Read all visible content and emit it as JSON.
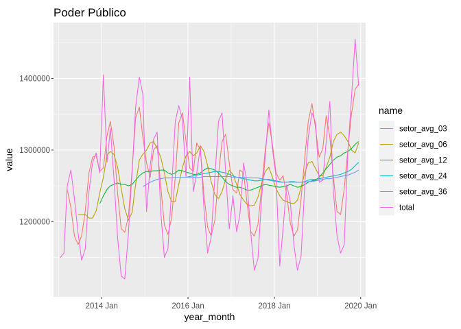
{
  "chart_data": {
    "type": "line",
    "title": "Poder Público",
    "xlabel": "year_month",
    "ylabel": "value",
    "xlim": [
      "2012-11-19",
      "2020-02-12"
    ],
    "ylim": [
      1095000,
      1478000
    ],
    "x_ticks": [
      {
        "date": "2014-01-01",
        "label": "2014 Jan"
      },
      {
        "date": "2016-01-01",
        "label": "2016 Jan"
      },
      {
        "date": "2018-01-01",
        "label": "2018 Jan"
      },
      {
        "date": "2020-01-01",
        "label": "2020 Jan"
      }
    ],
    "y_ticks": [
      {
        "value": 1200000,
        "label": "1200000"
      },
      {
        "value": 1300000,
        "label": "1300000"
      },
      {
        "value": 1400000,
        "label": "1400000"
      }
    ],
    "grid": true,
    "legend": {
      "title": "name",
      "placement": "right"
    },
    "series": [
      {
        "name": "setor_avg_03",
        "color": "#F8766D",
        "x": [
          "2013-03",
          "2013-04",
          "2013-05",
          "2013-06",
          "2013-07",
          "2013-08",
          "2013-09",
          "2013-10",
          "2013-11",
          "2013-12",
          "2014-01",
          "2014-02",
          "2014-03",
          "2014-04",
          "2014-05",
          "2014-06",
          "2014-07",
          "2014-08",
          "2014-09",
          "2014-10",
          "2014-11",
          "2014-12",
          "2015-01",
          "2015-02",
          "2015-03",
          "2015-04",
          "2015-05",
          "2015-06",
          "2015-07",
          "2015-08",
          "2015-09",
          "2015-10",
          "2015-11",
          "2015-12",
          "2016-01",
          "2016-02",
          "2016-03",
          "2016-04",
          "2016-05",
          "2016-06",
          "2016-07",
          "2016-08",
          "2016-09",
          "2016-10",
          "2016-11",
          "2016-12",
          "2017-01",
          "2017-02",
          "2017-03",
          "2017-04",
          "2017-05",
          "2017-06",
          "2017-07",
          "2017-08",
          "2017-09",
          "2017-10",
          "2017-11",
          "2017-12",
          "2018-01",
          "2018-02",
          "2018-03",
          "2018-04",
          "2018-05",
          "2018-06",
          "2018-07",
          "2018-08",
          "2018-09",
          "2018-10",
          "2018-11",
          "2018-12",
          "2019-01",
          "2019-02",
          "2019-03",
          "2019-04",
          "2019-05",
          "2019-06",
          "2019-07",
          "2019-08",
          "2019-09",
          "2019-10",
          "2019-11",
          "2019-12"
        ],
        "y": [
          1245000,
          1220000,
          1180000,
          1168000,
          1180000,
          1215000,
          1268000,
          1290000,
          1292000,
          1270000,
          1275000,
          1320000,
          1340000,
          1305000,
          1240000,
          1190000,
          1185000,
          1208000,
          1272000,
          1345000,
          1360000,
          1318000,
          1282000,
          1262000,
          1300000,
          1306000,
          1250000,
          1195000,
          1182000,
          1205000,
          1262000,
          1338000,
          1352000,
          1312000,
          1275000,
          1270000,
          1310000,
          1300000,
          1238000,
          1192000,
          1180000,
          1202000,
          1266000,
          1312000,
          1322000,
          1282000,
          1245000,
          1240000,
          1272000,
          1268000,
          1225000,
          1186000,
          1180000,
          1196000,
          1248000,
          1300000,
          1338000,
          1308000,
          1268000,
          1258000,
          1264000,
          1238000,
          1198000,
          1180000,
          1188000,
          1232000,
          1290000,
          1340000,
          1365000,
          1330000,
          1290000,
          1302000,
          1348000,
          1318000,
          1262000,
          1214000,
          1210000,
          1246000,
          1302000,
          1350000,
          1385000,
          1392000
        ]
      },
      {
        "name": "setor_avg_06",
        "color": "#B79F00",
        "x": [
          "2013-06",
          "2013-07",
          "2013-08",
          "2013-09",
          "2013-10",
          "2013-11",
          "2013-12",
          "2014-01",
          "2014-02",
          "2014-03",
          "2014-04",
          "2014-05",
          "2014-06",
          "2014-07",
          "2014-08",
          "2014-09",
          "2014-10",
          "2014-11",
          "2014-12",
          "2015-01",
          "2015-02",
          "2015-03",
          "2015-04",
          "2015-05",
          "2015-06",
          "2015-07",
          "2015-08",
          "2015-09",
          "2015-10",
          "2015-11",
          "2015-12",
          "2016-01",
          "2016-02",
          "2016-03",
          "2016-04",
          "2016-05",
          "2016-06",
          "2016-07",
          "2016-08",
          "2016-09",
          "2016-10",
          "2016-11",
          "2016-12",
          "2017-01",
          "2017-02",
          "2017-03",
          "2017-04",
          "2017-05",
          "2017-06",
          "2017-07",
          "2017-08",
          "2017-09",
          "2017-10",
          "2017-11",
          "2017-12",
          "2018-01",
          "2018-02",
          "2018-03",
          "2018-04",
          "2018-05",
          "2018-06",
          "2018-07",
          "2018-08",
          "2018-09",
          "2018-10",
          "2018-11",
          "2018-12",
          "2019-01",
          "2019-02",
          "2019-03",
          "2019-04",
          "2019-05",
          "2019-06",
          "2019-07",
          "2019-08",
          "2019-09",
          "2019-10",
          "2019-11",
          "2019-12"
        ],
        "y": [
          1210000,
          1210000,
          1210000,
          1205000,
          1205000,
          1215000,
          1240000,
          1262000,
          1293000,
          1298000,
          1294000,
          1276000,
          1246000,
          1218000,
          1202000,
          1213000,
          1252000,
          1286000,
          1294000,
          1300000,
          1310000,
          1312000,
          1302000,
          1290000,
          1268000,
          1242000,
          1228000,
          1228000,
          1252000,
          1276000,
          1292000,
          1298000,
          1292000,
          1296000,
          1306000,
          1298000,
          1278000,
          1256000,
          1238000,
          1232000,
          1242000,
          1260000,
          1272000,
          1266000,
          1252000,
          1238000,
          1230000,
          1224000,
          1222000,
          1223000,
          1234000,
          1254000,
          1270000,
          1276000,
          1262000,
          1246000,
          1236000,
          1230000,
          1228000,
          1226000,
          1225000,
          1230000,
          1248000,
          1268000,
          1282000,
          1284000,
          1274000,
          1264000,
          1264000,
          1276000,
          1290000,
          1312000,
          1322000,
          1325000,
          1320000,
          1312000,
          1300000,
          1296000,
          1310000
        ]
      },
      {
        "name": "setor_avg_12",
        "color": "#00BA38",
        "x": [
          "2013-12",
          "2014-01",
          "2014-02",
          "2014-03",
          "2014-04",
          "2014-05",
          "2014-06",
          "2014-07",
          "2014-08",
          "2014-09",
          "2014-10",
          "2014-11",
          "2014-12",
          "2015-01",
          "2015-02",
          "2015-03",
          "2015-04",
          "2015-05",
          "2015-06",
          "2015-07",
          "2015-08",
          "2015-09",
          "2015-10",
          "2015-11",
          "2015-12",
          "2016-01",
          "2016-02",
          "2016-03",
          "2016-04",
          "2016-05",
          "2016-06",
          "2016-07",
          "2016-08",
          "2016-09",
          "2016-10",
          "2016-11",
          "2016-12",
          "2017-01",
          "2017-02",
          "2017-03",
          "2017-04",
          "2017-05",
          "2017-06",
          "2017-07",
          "2017-08",
          "2017-09",
          "2017-10",
          "2017-11",
          "2017-12",
          "2018-01",
          "2018-02",
          "2018-03",
          "2018-04",
          "2018-05",
          "2018-06",
          "2018-07",
          "2018-08",
          "2018-09",
          "2018-10",
          "2018-11",
          "2018-12",
          "2019-01",
          "2019-02",
          "2019-03",
          "2019-04",
          "2019-05",
          "2019-06",
          "2019-07",
          "2019-08",
          "2019-09",
          "2019-10",
          "2019-11",
          "2019-12"
        ],
        "y": [
          1225000,
          1236000,
          1245000,
          1250000,
          1252000,
          1254000,
          1252000,
          1252000,
          1250000,
          1252000,
          1258000,
          1264000,
          1268000,
          1270000,
          1270000,
          1271000,
          1271000,
          1272000,
          1272000,
          1268000,
          1266000,
          1268000,
          1272000,
          1271000,
          1269000,
          1268000,
          1266000,
          1266000,
          1268000,
          1272000,
          1275000,
          1274000,
          1272000,
          1268000,
          1262000,
          1256000,
          1252000,
          1250000,
          1248000,
          1248000,
          1246000,
          1244000,
          1244000,
          1246000,
          1248000,
          1250000,
          1252000,
          1251000,
          1250000,
          1249000,
          1248000,
          1249000,
          1250000,
          1252000,
          1250000,
          1248000,
          1249000,
          1252000,
          1255000,
          1257000,
          1258000,
          1262000,
          1268000,
          1274000,
          1280000,
          1286000,
          1290000,
          1292000,
          1296000,
          1298000,
          1302000,
          1308000,
          1312000
        ]
      },
      {
        "name": "setor_avg_24",
        "color": "#00BFC4",
        "x": [
          "2015-12",
          "2016-01",
          "2016-02",
          "2016-03",
          "2016-04",
          "2016-05",
          "2016-06",
          "2016-07",
          "2016-08",
          "2016-09",
          "2016-10",
          "2016-11",
          "2016-12",
          "2017-01",
          "2017-02",
          "2017-03",
          "2017-04",
          "2017-05",
          "2017-06",
          "2017-07",
          "2017-08",
          "2017-09",
          "2017-10",
          "2017-11",
          "2017-12",
          "2018-01",
          "2018-02",
          "2018-03",
          "2018-04",
          "2018-05",
          "2018-06",
          "2018-07",
          "2018-08",
          "2018-09",
          "2018-10",
          "2018-11",
          "2018-12",
          "2019-01",
          "2019-02",
          "2019-03",
          "2019-04",
          "2019-05",
          "2019-06",
          "2019-07",
          "2019-08",
          "2019-09",
          "2019-10",
          "2019-11",
          "2019-12"
        ],
        "y": [
          1262000,
          1263000,
          1264000,
          1265000,
          1266000,
          1267000,
          1268000,
          1269000,
          1270000,
          1270000,
          1269000,
          1268000,
          1266000,
          1264000,
          1262000,
          1261000,
          1260000,
          1259000,
          1258000,
          1257000,
          1257000,
          1258000,
          1259000,
          1259000,
          1258000,
          1257000,
          1256000,
          1255000,
          1255000,
          1256000,
          1256000,
          1255000,
          1255000,
          1256000,
          1258000,
          1259000,
          1259000,
          1260000,
          1261000,
          1262000,
          1263000,
          1264000,
          1265000,
          1266000,
          1268000,
          1270000,
          1273000,
          1278000,
          1283000
        ]
      },
      {
        "name": "setor_avg_36",
        "color": "#619CFF",
        "x": [
          "2014-12",
          "2015-01",
          "2015-02",
          "2015-03",
          "2015-04",
          "2015-05",
          "2015-06",
          "2015-07",
          "2015-08",
          "2015-09",
          "2015-10",
          "2015-11",
          "2015-12",
          "2016-01",
          "2016-02",
          "2016-03",
          "2016-04",
          "2016-05",
          "2016-06",
          "2016-07",
          "2016-08",
          "2016-09",
          "2016-10",
          "2016-11",
          "2016-12",
          "2017-01",
          "2017-02",
          "2017-03",
          "2017-04",
          "2017-05",
          "2017-06",
          "2017-07",
          "2017-08",
          "2017-09",
          "2017-10",
          "2017-11",
          "2017-12",
          "2018-01",
          "2018-02",
          "2018-03",
          "2018-04",
          "2018-05",
          "2018-06",
          "2018-07",
          "2018-08",
          "2018-09",
          "2018-10",
          "2018-11",
          "2018-12",
          "2019-01",
          "2019-02",
          "2019-03",
          "2019-04",
          "2019-05",
          "2019-06",
          "2019-07",
          "2019-08",
          "2019-09",
          "2019-10",
          "2019-11",
          "2019-12"
        ],
        "y": [
          1249000,
          1252000,
          1255000,
          1257000,
          1259000,
          1260000,
          1261000,
          1261000,
          1261000,
          1262000,
          1262000,
          1262000,
          1262000,
          1262000,
          1262000,
          1262000,
          1262000,
          1263000,
          1263000,
          1263000,
          1263000,
          1263000,
          1263000,
          1263000,
          1263000,
          1262000,
          1262000,
          1262000,
          1262000,
          1262000,
          1261000,
          1261000,
          1261000,
          1260000,
          1259000,
          1258000,
          1257000,
          1256000,
          1255000,
          1255000,
          1255000,
          1255000,
          1255000,
          1255000,
          1255000,
          1255000,
          1256000,
          1256000,
          1257000,
          1258000,
          1259000,
          1260000,
          1260000,
          1261000,
          1262000,
          1263000,
          1264000,
          1265000,
          1267000,
          1269000,
          1272000
        ]
      },
      {
        "name": "total",
        "color": "#F564E3",
        "x": [
          "2013-01",
          "2013-02",
          "2013-03",
          "2013-04",
          "2013-05",
          "2013-06",
          "2013-07",
          "2013-08",
          "2013-09",
          "2013-10",
          "2013-11",
          "2013-12",
          "2014-01",
          "2014-02",
          "2014-03",
          "2014-04",
          "2014-05",
          "2014-06",
          "2014-07",
          "2014-08",
          "2014-09",
          "2014-10",
          "2014-11",
          "2014-12",
          "2015-01",
          "2015-02",
          "2015-03",
          "2015-04",
          "2015-05",
          "2015-06",
          "2015-07",
          "2015-08",
          "2015-09",
          "2015-10",
          "2015-11",
          "2015-12",
          "2016-01",
          "2016-02",
          "2016-03",
          "2016-04",
          "2016-05",
          "2016-06",
          "2016-07",
          "2016-08",
          "2016-09",
          "2016-10",
          "2016-11",
          "2016-12",
          "2017-01",
          "2017-02",
          "2017-03",
          "2017-04",
          "2017-05",
          "2017-06",
          "2017-07",
          "2017-08",
          "2017-09",
          "2017-10",
          "2017-11",
          "2017-12",
          "2018-01",
          "2018-02",
          "2018-03",
          "2018-04",
          "2018-05",
          "2018-06",
          "2018-07",
          "2018-08",
          "2018-09",
          "2018-10",
          "2018-11",
          "2018-12",
          "2019-01",
          "2019-02",
          "2019-03",
          "2019-04",
          "2019-05",
          "2019-06",
          "2019-07",
          "2019-08",
          "2019-09",
          "2019-10",
          "2019-11",
          "2019-12"
        ],
        "y": [
          1150000,
          1156000,
          1250000,
          1272000,
          1232000,
          1184000,
          1146000,
          1162000,
          1242000,
          1282000,
          1296000,
          1268000,
          1405000,
          1283000,
          1330000,
          1259000,
          1178000,
          1124000,
          1120000,
          1184000,
          1270000,
          1360000,
          1402000,
          1378000,
          1214000,
          1278000,
          1315000,
          1325000,
          1214000,
          1150000,
          1162000,
          1244000,
          1340000,
          1362000,
          1342000,
          1262000,
          1402000,
          1242000,
          1268000,
          1305000,
          1218000,
          1156000,
          1178000,
          1262000,
          1340000,
          1352000,
          1268000,
          1190000,
          1236000,
          1186000,
          1210000,
          1282000,
          1254000,
          1185000,
          1132000,
          1148000,
          1234000,
          1290000,
          1356000,
          1302000,
          1262000,
          1138000,
          1190000,
          1252000,
          1228000,
          1168000,
          1132000,
          1152000,
          1252000,
          1318000,
          1352000,
          1338000,
          1255000,
          1258000,
          1312000,
          1368000,
          1242000,
          1180000,
          1156000,
          1168000,
          1300000,
          1372000,
          1455000,
          1390000
        ]
      }
    ]
  }
}
